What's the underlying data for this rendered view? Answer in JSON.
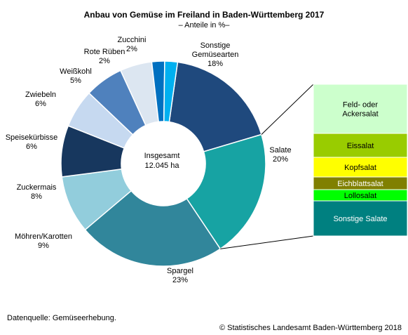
{
  "title": "Anbau von Gemüse im Freiland in Baden-Württemberg 2017",
  "subtitle": "– Anteile in %–",
  "center_label": {
    "line1": "Insgesamt",
    "line2": "12.045 ha"
  },
  "source": "Datenquelle: Gemüseerhebung.",
  "copyright": "© Statistisches Landesamt Baden-Württemberg 2018",
  "chart_data": {
    "type": "pie",
    "variant": "donut",
    "title": "Anbau von Gemüse im Freiland in Baden-Württemberg 2017",
    "subtitle": "– Anteile in %–",
    "unit": "%",
    "slices": [
      {
        "label": "Sonstige Gemüsearten",
        "value": 18,
        "value_label": "18%",
        "color": "#1f497d"
      },
      {
        "label": "Salate",
        "value": 20,
        "value_label": "20%",
        "color": "#17a3a3"
      },
      {
        "label": "Spargel",
        "value": 23,
        "value_label": "23%",
        "color": "#31869b"
      },
      {
        "label": "Möhren/Karotten",
        "value": 9,
        "value_label": "9%",
        "color": "#92cddc"
      },
      {
        "label": "Zuckermais",
        "value": 8,
        "value_label": "8%",
        "color": "#17375e"
      },
      {
        "label": "Speisekürbisse",
        "value": 6,
        "value_label": "6%",
        "color": "#c6d9f0"
      },
      {
        "label": "Zwiebeln",
        "value": 6,
        "value_label": "6%",
        "color": "#4f81bd"
      },
      {
        "label": "Weißkohl",
        "value": 5,
        "value_label": "5%",
        "color": "#dce6f1"
      },
      {
        "label": "Rote Rüben",
        "value": 2,
        "value_label": "2%",
        "color": "#0070c0"
      },
      {
        "label": "Zucchini",
        "value": 2,
        "value_label": "2%",
        "color": "#00b0f0"
      }
    ],
    "breakdown": {
      "of": "Salate",
      "type": "stacked-bar",
      "segments": [
        {
          "label": "Feld- oder Ackersalat",
          "color": "#ccffcc"
        },
        {
          "label": "Eissalat",
          "color": "#99cc00"
        },
        {
          "label": "Kopfsalat",
          "color": "#ffff00"
        },
        {
          "label": "Eichblattsalat",
          "color": "#808000"
        },
        {
          "label": "Lollosalat",
          "color": "#00ff00"
        },
        {
          "label": "Sonstige Salate",
          "color": "#008080"
        }
      ]
    }
  }
}
